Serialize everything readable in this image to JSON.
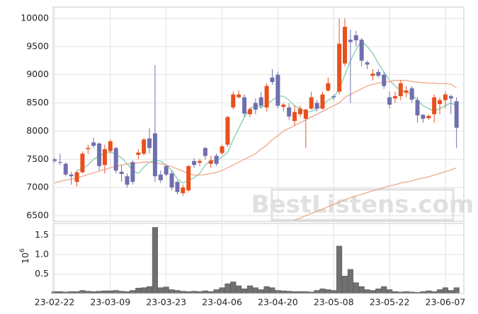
{
  "chart_data": [
    {
      "type": "candlestick",
      "categories": [
        "23-02-22",
        null,
        null,
        null,
        null,
        null,
        null,
        null,
        null,
        null,
        "23-03-09",
        null,
        null,
        null,
        null,
        null,
        null,
        null,
        null,
        null,
        "23-03-23",
        null,
        null,
        null,
        null,
        null,
        null,
        null,
        null,
        null,
        "23-04-06",
        null,
        null,
        null,
        null,
        null,
        null,
        null,
        null,
        null,
        "23-04-20",
        null,
        null,
        null,
        null,
        null,
        null,
        null,
        null,
        null,
        "23-05-08",
        null,
        null,
        null,
        null,
        null,
        null,
        null,
        null,
        null,
        "23-05-22",
        null,
        null,
        null,
        null,
        null,
        null,
        null,
        null,
        null,
        "23-06-07",
        null,
        null
      ],
      "open": [
        7500,
        7450,
        7420,
        7230,
        7100,
        7270,
        7680,
        7800,
        7780,
        7400,
        7650,
        7700,
        7280,
        7200,
        7450,
        7580,
        7600,
        7870,
        7960,
        7230,
        7380,
        7250,
        7100,
        6900,
        6950,
        7470,
        7440,
        7700,
        7420,
        7560,
        7610,
        7760,
        8420,
        8600,
        8600,
        8300,
        8500,
        8600,
        8420,
        8950,
        9000,
        8430,
        8420,
        8180,
        8300,
        8220,
        8400,
        8500,
        8400,
        8720,
        8620,
        8700,
        9200,
        9620,
        9700,
        9620,
        9220,
        8980,
        9050,
        9000,
        8600,
        8580,
        8620,
        8680,
        8760,
        8550,
        8290,
        8230,
        8300,
        8480,
        8550,
        8620,
        8530
      ],
      "high": [
        7530,
        7600,
        7450,
        7280,
        7300,
        7640,
        7760,
        7880,
        7800,
        7760,
        7850,
        7720,
        7400,
        7250,
        7480,
        7680,
        7880,
        8050,
        9170,
        7300,
        7400,
        7300,
        7130,
        7050,
        7400,
        7520,
        7510,
        7720,
        7560,
        7600,
        7760,
        8270,
        8700,
        8720,
        8650,
        8420,
        8580,
        8700,
        8850,
        9100,
        9050,
        8500,
        8500,
        8450,
        8450,
        8400,
        8700,
        8550,
        8700,
        8950,
        8650,
        10000,
        10000,
        9800,
        9780,
        9650,
        9250,
        9100,
        9100,
        9050,
        8700,
        8700,
        8900,
        8800,
        8800,
        8600,
        8300,
        8300,
        8650,
        8600,
        8700,
        8650,
        8600
      ],
      "low": [
        7440,
        7400,
        7200,
        7050,
        7020,
        7250,
        7600,
        7700,
        7300,
        7250,
        7600,
        7250,
        7100,
        7000,
        7050,
        7500,
        7570,
        7600,
        7100,
        7080,
        7200,
        6950,
        6880,
        6850,
        6920,
        7350,
        7380,
        7500,
        7350,
        7380,
        7580,
        7720,
        8380,
        8580,
        8250,
        8250,
        8300,
        8400,
        8350,
        8820,
        8400,
        8350,
        8200,
        8100,
        8250,
        7700,
        8380,
        8350,
        8380,
        8700,
        8550,
        8650,
        9150,
        8500,
        9500,
        9150,
        9100,
        8900,
        8950,
        8750,
        8400,
        8500,
        8550,
        8600,
        8500,
        8150,
        8150,
        8200,
        8150,
        8300,
        8400,
        8300,
        7700
      ],
      "close": [
        7470,
        7440,
        7230,
        7200,
        7270,
        7600,
        7700,
        7740,
        7380,
        7680,
        7820,
        7300,
        7240,
        7050,
        7100,
        7620,
        7850,
        7700,
        7200,
        7130,
        7230,
        7000,
        6920,
        7000,
        7380,
        7400,
        7470,
        7560,
        7480,
        7420,
        7730,
        8250,
        8650,
        8650,
        8310,
        8390,
        8380,
        8450,
        8800,
        8870,
        8450,
        8470,
        8260,
        8340,
        8400,
        8380,
        8600,
        8400,
        8650,
        8850,
        8600,
        9550,
        9850,
        9580,
        9610,
        9250,
        9180,
        9020,
        8980,
        8800,
        8470,
        8620,
        8850,
        8720,
        8560,
        8280,
        8220,
        8270,
        8600,
        8550,
        8650,
        8580,
        8060
      ],
      "up_color": "#e8501c",
      "down_color": "#6f6faf",
      "series": [
        {
          "color": "#7fcfae",
          "values": [
            null,
            null,
            null,
            null,
            7300,
            7330,
            7400,
            7500,
            7560,
            7600,
            7640,
            7580,
            7530,
            7420,
            7300,
            7250,
            7360,
            7450,
            7480,
            7470,
            7400,
            7300,
            7150,
            7080,
            7130,
            7170,
            7250,
            7400,
            7480,
            7480,
            7540,
            7620,
            7850,
            8050,
            8250,
            8400,
            8450,
            8420,
            8470,
            8550,
            8620,
            8620,
            8550,
            8450,
            8400,
            8330,
            8350,
            8400,
            8450,
            8550,
            8600,
            8750,
            9000,
            9250,
            9450,
            9600,
            9500,
            9380,
            9200,
            9050,
            8900,
            8800,
            8720,
            8700,
            8650,
            8550,
            8450,
            8400,
            8350,
            8400,
            8450,
            8500,
            8450
          ]
        },
        {
          "color": "#efa789",
          "values": [
            7080,
            7110,
            7130,
            7150,
            7170,
            7200,
            7230,
            7260,
            7290,
            7320,
            7350,
            7380,
            7400,
            7420,
            7430,
            7440,
            7450,
            7450,
            7440,
            7420,
            7400,
            7370,
            7330,
            7290,
            7250,
            7220,
            7220,
            7230,
            7250,
            7270,
            7300,
            7350,
            7400,
            7450,
            7500,
            7550,
            7600,
            7680,
            7750,
            7850,
            7920,
            8000,
            8050,
            8100,
            8150,
            8200,
            8250,
            8300,
            8350,
            8400,
            8450,
            8500,
            8600,
            8650,
            8700,
            8750,
            8800,
            8830,
            8850,
            8870,
            8880,
            8900,
            8900,
            8900,
            8880,
            8870,
            8860,
            8850,
            8850,
            8840,
            8840,
            8830,
            8770
          ]
        },
        {
          "color": "#efa789",
          "values": [
            null,
            null,
            null,
            null,
            null,
            null,
            null,
            null,
            null,
            null,
            null,
            null,
            null,
            null,
            null,
            null,
            null,
            null,
            null,
            null,
            null,
            null,
            null,
            null,
            null,
            null,
            null,
            null,
            null,
            null,
            null,
            null,
            null,
            null,
            null,
            null,
            null,
            null,
            null,
            null,
            null,
            null,
            null,
            6420,
            6460,
            6500,
            6540,
            6580,
            6620,
            6660,
            6700,
            6740,
            6780,
            6820,
            6850,
            6880,
            6910,
            6940,
            6970,
            7000,
            7030,
            7050,
            7080,
            7100,
            7120,
            7150,
            7170,
            7190,
            7220,
            7250,
            7280,
            7310,
            7350
          ]
        }
      ],
      "ylim": [
        6400,
        10200
      ],
      "yticks": [
        6500,
        7000,
        7500,
        8000,
        8500,
        9000,
        9500,
        10000
      ],
      "grid": true,
      "watermark": "BestListens.com"
    },
    {
      "type": "bar",
      "color": "#707070",
      "values": [
        0.05,
        0.05,
        0.04,
        0.05,
        0.05,
        0.08,
        0.06,
        0.05,
        0.06,
        0.07,
        0.07,
        0.08,
        0.06,
        0.05,
        0.08,
        0.14,
        0.15,
        0.18,
        1.7,
        0.15,
        0.17,
        0.1,
        0.08,
        0.06,
        0.05,
        0.06,
        0.05,
        0.07,
        0.05,
        0.1,
        0.15,
        0.25,
        0.3,
        0.2,
        0.12,
        0.2,
        0.15,
        0.1,
        0.18,
        0.15,
        0.08,
        0.07,
        0.06,
        0.05,
        0.05,
        0.05,
        0.04,
        0.08,
        0.12,
        0.1,
        0.08,
        1.22,
        0.45,
        0.62,
        0.28,
        0.18,
        0.1,
        0.08,
        0.12,
        0.18,
        0.1,
        0.05,
        0.04,
        0.05,
        0.04,
        0.03,
        0.05,
        0.07,
        0.05,
        0.1,
        0.15,
        0.08,
        0.15
      ],
      "ylim": [
        0,
        1.8
      ],
      "yticks": [
        0.5,
        {
          "value": 1,
          "label": "1.0"
        },
        1.5
      ],
      "grid": true,
      "y_label_base": "10",
      "y_label_exponent": "6"
    }
  ]
}
